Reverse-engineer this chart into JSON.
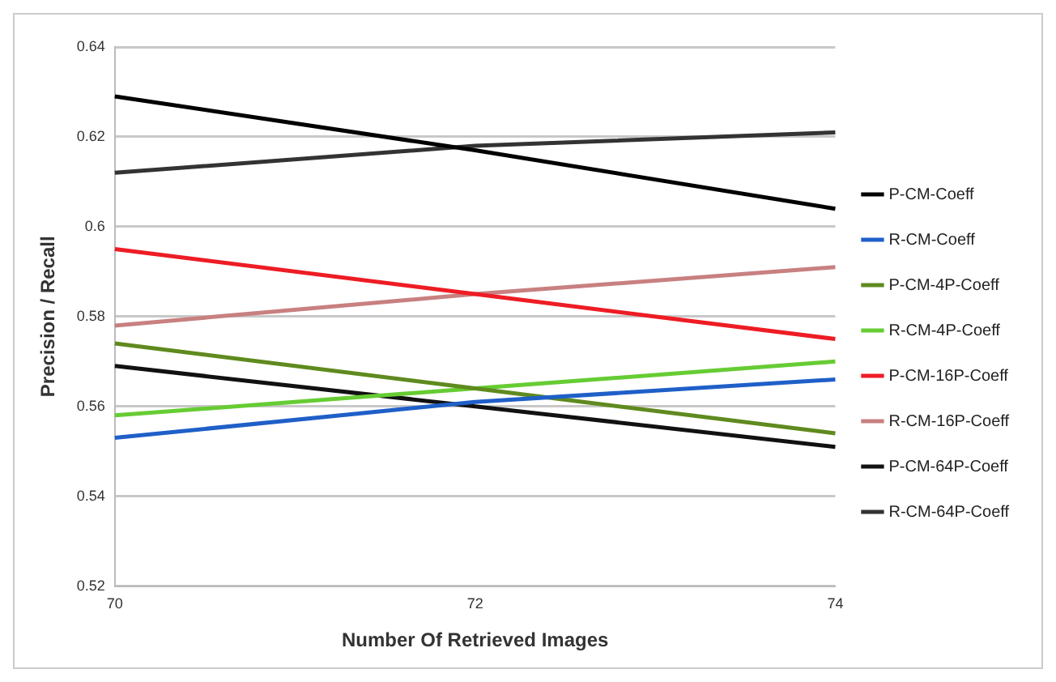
{
  "chart_data": {
    "type": "line",
    "xlabel": "Number Of Retrieved Images",
    "ylabel": "Precision / Recall",
    "categories": [
      "70",
      "72",
      "74"
    ],
    "ylim": [
      0.52,
      0.64
    ],
    "yticks": [
      0.52,
      0.54,
      0.56,
      0.58,
      {
        "value": 0.6,
        "label": "0.6"
      },
      0.62,
      0.64
    ],
    "grid": "y",
    "legend": "right",
    "marker": "none",
    "line_style": "solid",
    "series": [
      {
        "name": "P-CM-Coeff",
        "color": "#000000",
        "values": [
          0.629,
          0.617,
          0.604
        ]
      },
      {
        "name": "R-CM-Coeff",
        "color": "#1f5fc8",
        "values": [
          0.553,
          0.561,
          0.566
        ]
      },
      {
        "name": "P-CM-4P-Coeff",
        "color": "#5f8a1e",
        "values": [
          0.574,
          0.564,
          0.554
        ]
      },
      {
        "name": "R-CM-4P-Coeff",
        "color": "#66cc33",
        "values": [
          0.558,
          0.564,
          0.57
        ]
      },
      {
        "name": "P-CM-16P-Coeff",
        "color": "#ee1c24",
        "values": [
          0.595,
          0.585,
          0.575
        ]
      },
      {
        "name": "R-CM-16P-Coeff",
        "color": "#c88080",
        "values": [
          0.578,
          0.585,
          0.591
        ]
      },
      {
        "name": "P-CM-64P-Coeff",
        "color": "#111111",
        "values": [
          0.569,
          0.56,
          0.551
        ]
      },
      {
        "name": "R-CM-64P-Coeff",
        "color": "#333333",
        "values": [
          0.612,
          0.618,
          0.621
        ]
      }
    ]
  }
}
